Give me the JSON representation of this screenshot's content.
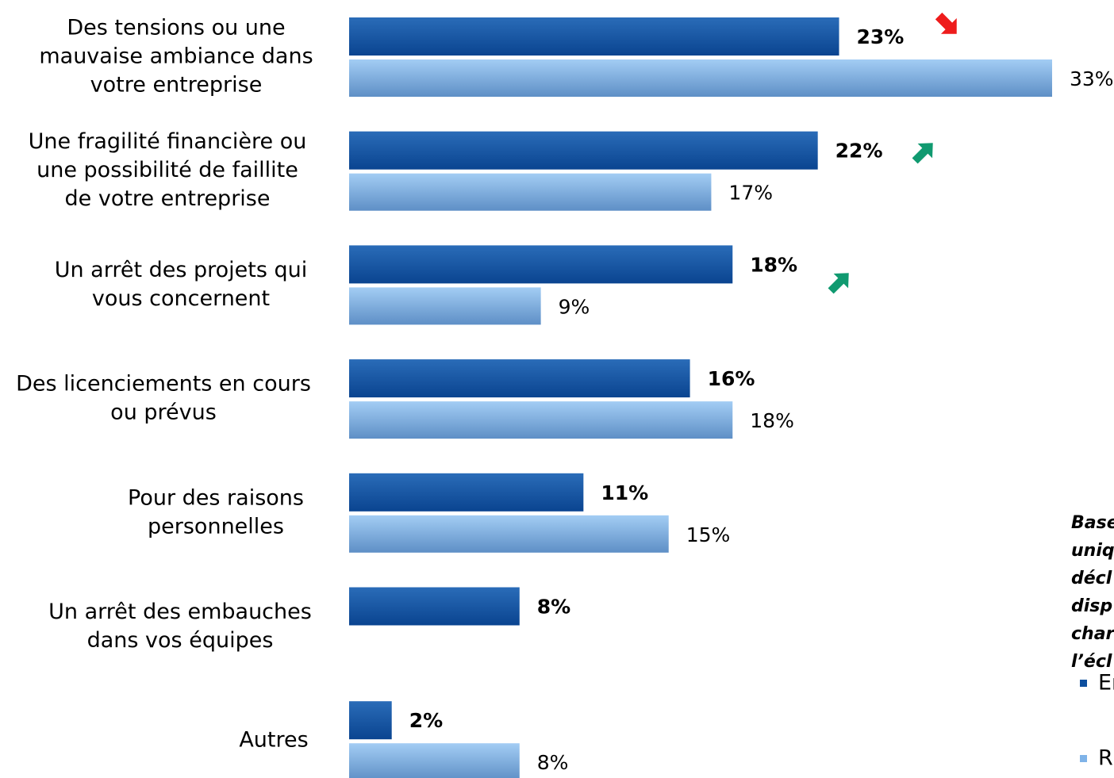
{
  "chart_data": {
    "type": "bar",
    "orientation": "horizontal",
    "categories": [
      [
        "Des tensions ou une",
        "mauvaise ambiance dans",
        "votre entreprise"
      ],
      [
        "Une fragilité financière ou",
        "une  possibilité de faillite",
        "de votre entreprise"
      ],
      [
        "Un arrêt des projets qui",
        "vous concernent"
      ],
      [
        "Des licenciements en cours",
        "ou prévus"
      ],
      [
        "Pour des raisons",
        "personnelles"
      ],
      [
        "Un arrêt des embauches",
        "dans vos équipes"
      ],
      [
        "Autres"
      ]
    ],
    "series": [
      {
        "name": "Er",
        "color": "#0d4f9e",
        "values": [
          23,
          22,
          18,
          16,
          11,
          8,
          2
        ],
        "value_labels": [
          "23%",
          "22%",
          "18%",
          "16%",
          "11%",
          "8%",
          "2%"
        ]
      },
      {
        "name": "R",
        "color": "#7fb3e8",
        "values": [
          33,
          17,
          9,
          18,
          15,
          null,
          8
        ],
        "value_labels": [
          "33%",
          "17%",
          "9%",
          "18%",
          "15%",
          null,
          "8%"
        ]
      }
    ],
    "note": [
      "Base",
      "uniq",
      "décl",
      "disp",
      "char",
      "l’écl"
    ]
  }
}
